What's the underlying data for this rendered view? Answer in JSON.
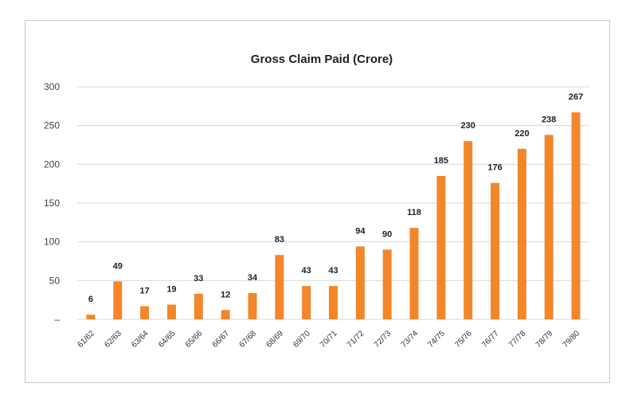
{
  "chart_data": {
    "type": "bar",
    "title": "Gross Claim Paid (Crore)",
    "xlabel": "",
    "ylabel": "",
    "categories": [
      "61/62",
      "62/63",
      "63/64",
      "64/65",
      "65/66",
      "66/67",
      "67/68",
      "68/69",
      "69/70",
      "70/71",
      "71/72",
      "72/73",
      "73/74",
      "74/75",
      "75/76",
      "76/77",
      "77/78",
      "78/79",
      "79/80"
    ],
    "values": [
      6,
      49,
      17,
      19,
      33,
      12,
      34,
      83,
      43,
      43,
      94,
      90,
      118,
      185,
      230,
      176,
      220,
      238,
      267
    ],
    "ylim": [
      0,
      300
    ],
    "yticks": [
      "–",
      "50",
      "100",
      "150",
      "200",
      "250",
      "300"
    ],
    "grid": true,
    "legend": "none",
    "bar_color": "#f4862a"
  }
}
